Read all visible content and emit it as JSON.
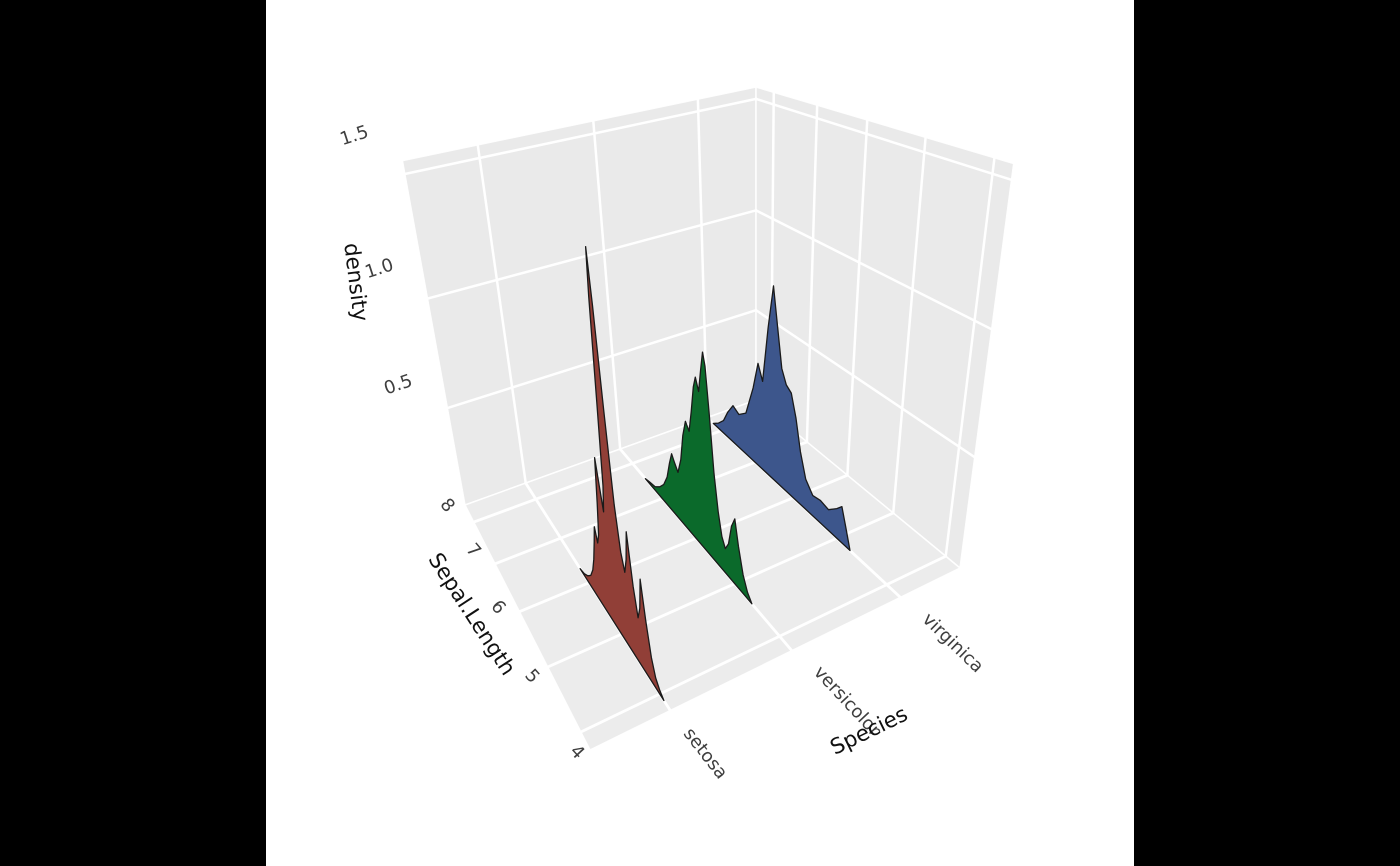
{
  "window": {
    "letterbox_color": "#000000",
    "canvas_color": "#ffffff"
  },
  "chart_data": {
    "type": "area",
    "variant": "3d-ridgeline-density",
    "title": "",
    "xlabel": "Sepal.Length",
    "ylabel": "Species",
    "zlabel": "density",
    "x_ticks": [
      4,
      5,
      6,
      7,
      8
    ],
    "z_ticks": [
      {
        "value": 0.5,
        "label": "0.5"
      },
      {
        "value": 1.0,
        "label": "1.0"
      },
      {
        "value": 1.5,
        "label": "1.5"
      }
    ],
    "y_categories": [
      "setosa",
      "versicolor",
      "virginica"
    ],
    "xlim": [
      3.75,
      8.45
    ],
    "ylim": [
      0.4,
      3.6
    ],
    "zlim": [
      0,
      1.55
    ],
    "grid": true,
    "legend": "none",
    "colors": {
      "panel_wall": "#EAEAEA",
      "panel_floor": "#ECECEC",
      "grid": "#FFFFFF",
      "tick_label": "#3F3F3F",
      "axis_label": "#111111",
      "ridge_outline": "#1A1A1A"
    },
    "series": [
      {
        "name": "setosa",
        "fill": "#913F37",
        "x": [
          3.9,
          4.0,
          4.08,
          4.16,
          4.24,
          4.31,
          4.38,
          4.45,
          4.52,
          4.59,
          4.66,
          4.73,
          4.8,
          4.87,
          4.93,
          4.98,
          5.02,
          5.06,
          5.11,
          5.16,
          5.22,
          5.28,
          5.34,
          5.4,
          5.46,
          5.52,
          5.58,
          5.64,
          5.72,
          5.8,
          5.9,
          6.02,
          6.15,
          6.3
        ],
        "density": [
          0.0,
          0.02,
          0.05,
          0.12,
          0.26,
          0.42,
          0.28,
          0.22,
          0.34,
          0.55,
          0.42,
          0.35,
          0.42,
          0.6,
          0.95,
          1.3,
          1.48,
          1.32,
          0.95,
          0.62,
          0.5,
          0.6,
          0.7,
          0.5,
          0.35,
          0.3,
          0.36,
          0.28,
          0.18,
          0.11,
          0.06,
          0.03,
          0.01,
          0.0
        ]
      },
      {
        "name": "versicolor",
        "fill": "#0B6A2B",
        "x": [
          4.6,
          4.7,
          4.8,
          4.9,
          4.98,
          5.06,
          5.14,
          5.22,
          5.3,
          5.38,
          5.46,
          5.54,
          5.61,
          5.66,
          5.72,
          5.79,
          5.86,
          5.92,
          6.0,
          6.08,
          6.17,
          6.26,
          6.35,
          6.45,
          6.54,
          6.62,
          6.7,
          6.8,
          6.92,
          7.06,
          7.22,
          7.4,
          7.55
        ],
        "density": [
          0.0,
          0.03,
          0.09,
          0.2,
          0.31,
          0.26,
          0.16,
          0.12,
          0.16,
          0.26,
          0.42,
          0.66,
          0.85,
          0.9,
          0.82,
          0.72,
          0.77,
          0.72,
          0.6,
          0.5,
          0.53,
          0.45,
          0.32,
          0.24,
          0.27,
          0.3,
          0.24,
          0.15,
          0.09,
          0.05,
          0.02,
          0.01,
          0.0
        ]
      },
      {
        "name": "virginica",
        "fill": "#3D568C",
        "x": [
          4.72,
          4.83,
          4.93,
          5.03,
          5.2,
          5.38,
          5.55,
          5.72,
          5.86,
          5.98,
          6.1,
          6.22,
          6.33,
          6.44,
          6.55,
          6.67,
          6.8,
          6.92,
          7.05,
          7.25,
          7.45,
          7.62,
          7.78,
          7.92,
          8.08,
          8.25
        ],
        "density": [
          0.0,
          0.09,
          0.17,
          0.14,
          0.1,
          0.11,
          0.1,
          0.15,
          0.26,
          0.4,
          0.5,
          0.52,
          0.58,
          0.75,
          0.92,
          0.72,
          0.45,
          0.52,
          0.38,
          0.22,
          0.18,
          0.2,
          0.14,
          0.07,
          0.03,
          0.0
        ]
      }
    ]
  }
}
